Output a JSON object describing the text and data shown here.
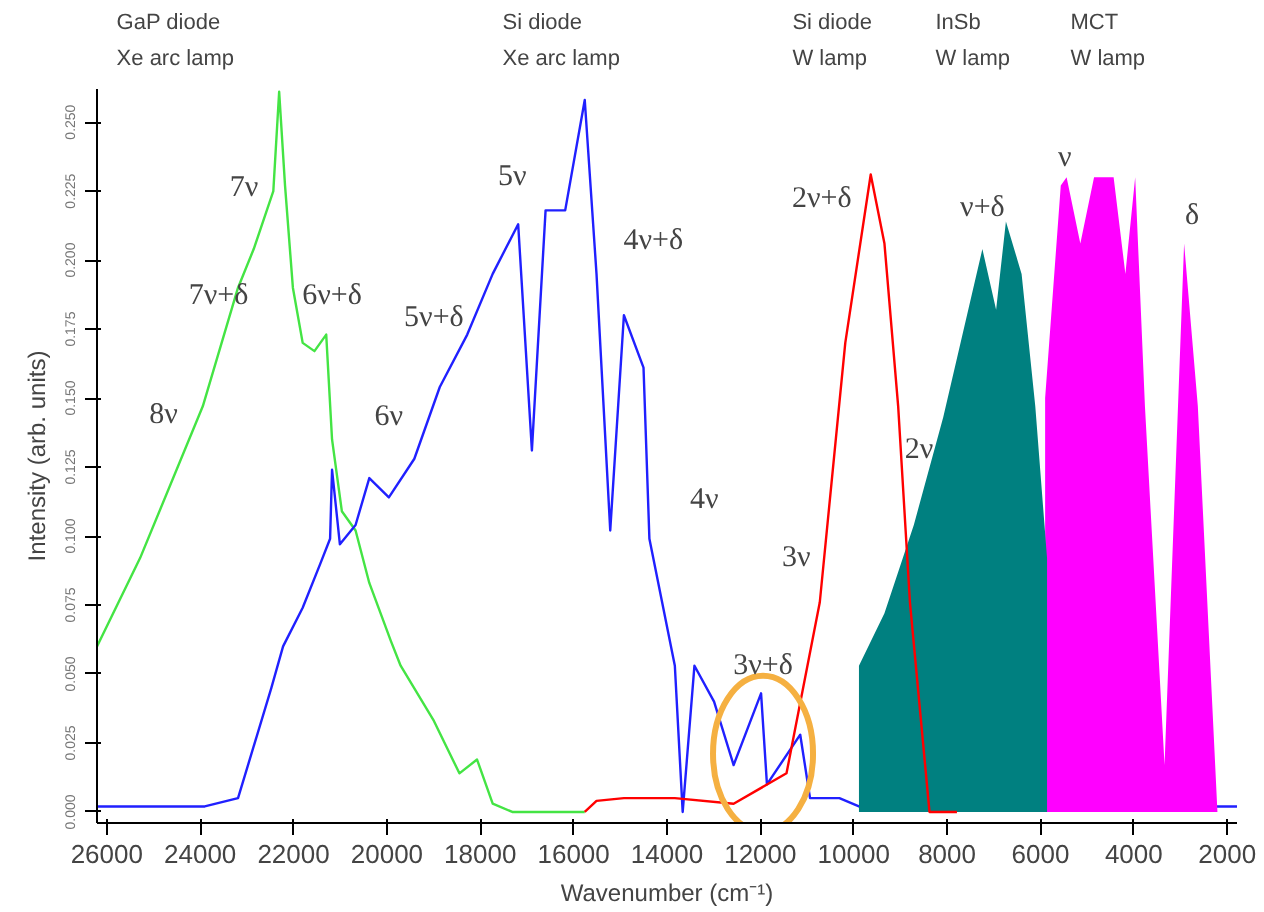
{
  "chart_data": {
    "type": "line",
    "xlabel": "Wavenumber (cm⁻¹)",
    "ylabel": "Intensity (arb. units)",
    "xlim": [
      26210,
      1790
    ],
    "ylim": [
      -0.004,
      0.262
    ],
    "xticks": [
      26000,
      24000,
      22000,
      20000,
      18000,
      16000,
      14000,
      12000,
      10000,
      8000,
      6000,
      4000,
      2000
    ],
    "yticks": [
      {
        "value": 0,
        "label": "0.000"
      },
      {
        "value": 0.025,
        "label": "0.025"
      },
      {
        "value": 0.05,
        "label": "0.050"
      },
      {
        "value": 0.075,
        "label": "0.075"
      },
      {
        "value": 0.1,
        "label": "0.100"
      },
      {
        "value": 0.125,
        "label": "0.125"
      },
      {
        "value": 0.15,
        "label": "0.150"
      },
      {
        "value": 0.175,
        "label": "0.175"
      },
      {
        "value": 0.2,
        "label": "0.200"
      },
      {
        "value": 0.225,
        "label": "0.225"
      },
      {
        "value": 0.25,
        "label": "0.250"
      }
    ],
    "grid": false,
    "series": [
      {
        "color": "#44e444",
        "x": [
          26210,
          25287,
          23944,
          23189,
          22853,
          22433,
          22308,
          22182,
          22014,
          21804,
          21552,
          21300,
          21175,
          20965,
          20671,
          20377,
          19916,
          19706,
          18993,
          18447,
          18069,
          17734,
          17314,
          15762
        ],
        "values": [
          0.06,
          0.092,
          0.147,
          0.19,
          0.204,
          0.225,
          0.261,
          0.227,
          0.19,
          0.17,
          0.167,
          0.173,
          0.135,
          0.109,
          0.102,
          0.083,
          0.062,
          0.053,
          0.033,
          0.014,
          0.019,
          0.003,
          0.0,
          0.0
        ]
      },
      {
        "color": "#2020ff",
        "x": [
          26210,
          25287,
          23902,
          23189,
          22475,
          22224,
          21804,
          21426,
          21217,
          21175,
          21007,
          20671,
          20377,
          19958,
          19412,
          18867,
          18279,
          17734,
          17188,
          16894,
          16601,
          16181,
          15762,
          15510,
          15216,
          14923,
          14503,
          14377,
          13832,
          13664,
          13412,
          12992,
          12573,
          11985,
          11859,
          11146,
          10936,
          10307,
          9888,
          1790
        ],
        "values": [
          0.002,
          0.002,
          0.002,
          0.005,
          0.045,
          0.06,
          0.074,
          0.09,
          0.099,
          0.124,
          0.097,
          0.104,
          0.121,
          0.114,
          0.128,
          0.154,
          0.173,
          0.195,
          0.213,
          0.131,
          0.218,
          0.218,
          0.258,
          0.195,
          0.102,
          0.18,
          0.161,
          0.099,
          0.053,
          0.0,
          0.053,
          0.04,
          0.017,
          0.043,
          0.01,
          0.028,
          0.005,
          0.005,
          0.002,
          0.002
        ]
      },
      {
        "type": "area",
        "color": "#ff00ff",
        "x": [
          5900,
          5565,
          5440,
          5146,
          4852,
          4433,
          4181,
          3971,
          3762,
          3342,
          2923,
          2629,
          2209
        ],
        "values": [
          0.15,
          0.227,
          0.23,
          0.206,
          0.23,
          0.23,
          0.195,
          0.23,
          0.147,
          0.017,
          0.206,
          0.147,
          0.0
        ]
      },
      {
        "type": "area",
        "color": "#008080",
        "x": [
          9888,
          9342,
          8713,
          8083,
          7244,
          6950,
          6740,
          6404,
          6111,
          5859
        ],
        "values": [
          0.053,
          0.072,
          0.104,
          0.143,
          0.204,
          0.182,
          0.214,
          0.195,
          0.147,
          0.092
        ]
      },
      {
        "color": "#ff0000",
        "x": [
          15762,
          15510,
          14923,
          13832,
          12573,
          11440,
          10727,
          10181,
          9636,
          9342,
          9048,
          8796,
          8377,
          7789
        ],
        "values": [
          0.0,
          0.004,
          0.005,
          0.005,
          0.003,
          0.014,
          0.076,
          0.17,
          0.231,
          0.206,
          0.147,
          0.076,
          0.0,
          0.0
        ]
      }
    ],
    "annotations": [
      "GaP diode",
      "Xe arc lamp",
      "Si diode",
      "Xe arc lamp",
      "Si diode",
      "W lamp",
      "InSb",
      "W lamp",
      "MCT",
      "W lamp",
      "8ν",
      "7ν+δ",
      "7ν",
      "6ν+δ",
      "6ν",
      "5ν+δ",
      "5ν",
      "4ν+δ",
      "4ν",
      "3ν+δ",
      "3ν",
      "2ν+δ",
      "2ν",
      "ν+δ",
      "ν",
      "δ"
    ]
  }
}
